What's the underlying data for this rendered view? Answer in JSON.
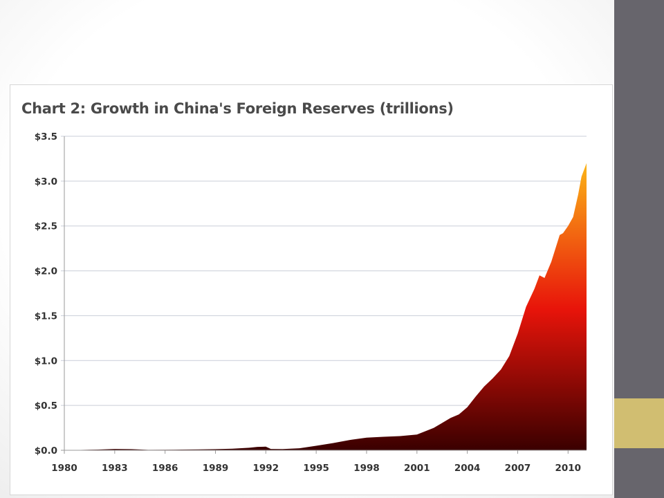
{
  "chart_data": {
    "type": "area",
    "title": "Chart 2: Growth in China's Foreign Reserves (trillions)",
    "xlabel": "",
    "ylabel": "",
    "x_tick_labels": [
      "1980",
      "1983",
      "1986",
      "1989",
      "1992",
      "1995",
      "1998",
      "2001",
      "2004",
      "2007",
      "2010"
    ],
    "y_tick_labels": [
      "$0.0",
      "$0.5",
      "$1.0",
      "$1.5",
      "$2.0",
      "$2.5",
      "$3.0",
      "$3.5"
    ],
    "xlim": [
      1980,
      2011.1
    ],
    "ylim": [
      0,
      3.5
    ],
    "grid": true,
    "legend": "none",
    "colors": {
      "bottom": "#3a0000",
      "mid": "#e8140a",
      "top": "#ffd21a"
    },
    "series": [
      {
        "x": [
          1980,
          1982,
          1983,
          1984,
          1985,
          1986,
          1987,
          1988,
          1989,
          1990,
          1991,
          1991.5,
          1992,
          1992.3,
          1993,
          1994,
          1995,
          1996,
          1997,
          1998,
          1999,
          2000,
          2001,
          2002,
          2003,
          2003.5,
          2004,
          2004.5,
          2005,
          2005.5,
          2006,
          2006.5,
          2007,
          2007.5,
          2008,
          2008.3,
          2008.6,
          2009,
          2009.5,
          2009.7,
          2010,
          2010.3,
          2010.6,
          2010.8,
          2011.1
        ],
        "values": [
          0.0,
          0.008,
          0.015,
          0.012,
          0.005,
          0.006,
          0.008,
          0.01,
          0.012,
          0.018,
          0.028,
          0.038,
          0.04,
          0.015,
          0.013,
          0.022,
          0.05,
          0.08,
          0.115,
          0.14,
          0.15,
          0.158,
          0.175,
          0.25,
          0.36,
          0.4,
          0.48,
          0.6,
          0.71,
          0.8,
          0.9,
          1.05,
          1.3,
          1.6,
          1.8,
          1.95,
          1.92,
          2.1,
          2.4,
          2.42,
          2.5,
          2.6,
          2.85,
          3.05,
          3.2
        ]
      }
    ]
  }
}
